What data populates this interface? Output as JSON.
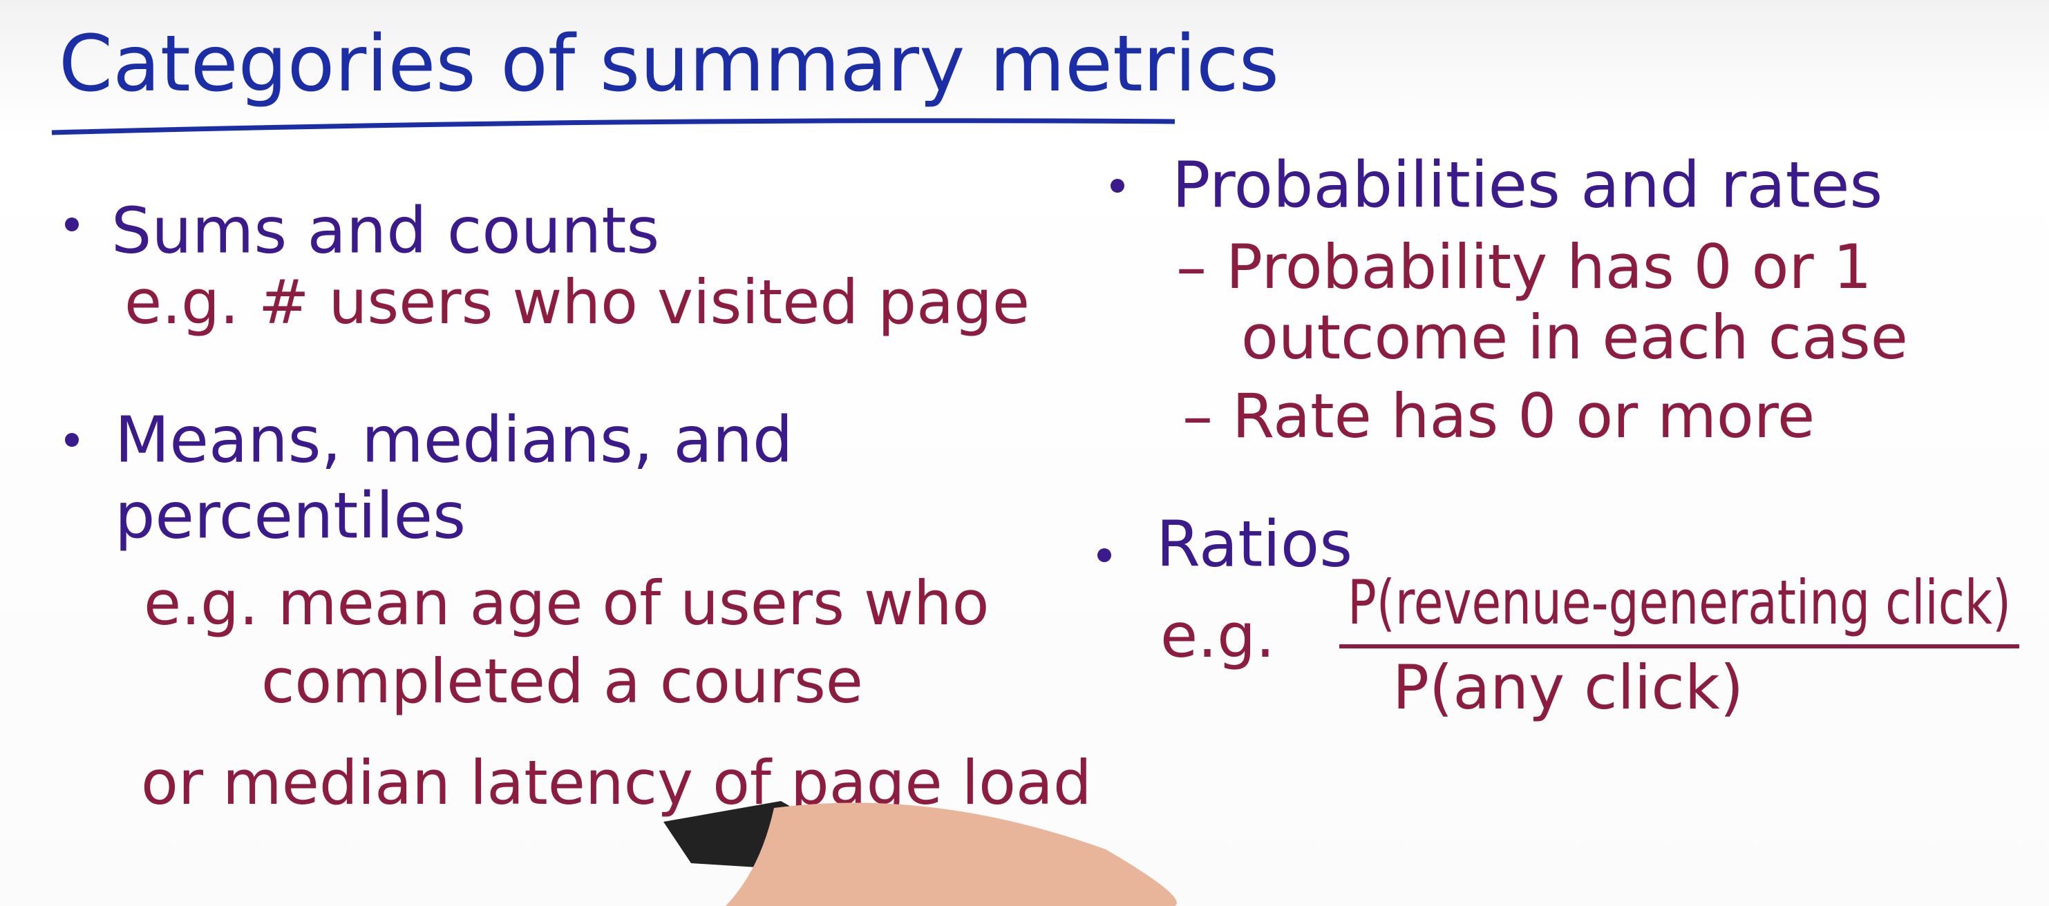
{
  "title": "Categories of summary metrics",
  "left": [
    {
      "heading": [
        "Sums and counts"
      ],
      "example": [
        "e.g. # users who visited page"
      ]
    },
    {
      "heading": [
        "Means, medians, and",
        "percentiles"
      ],
      "example": [
        "e.g. mean age of users who",
        "completed a course",
        "or median latency of page load"
      ]
    }
  ],
  "right": [
    {
      "heading": [
        "Probabilities and rates"
      ],
      "points": [
        "– Probability has 0 or 1",
        "outcome in each case",
        "– Rate has 0 or more"
      ]
    },
    {
      "heading": [
        "Ratios"
      ],
      "example_prefix": "e.g.",
      "numerator": "P(revenue-generating click)",
      "denominator": "P(any click)"
    }
  ]
}
